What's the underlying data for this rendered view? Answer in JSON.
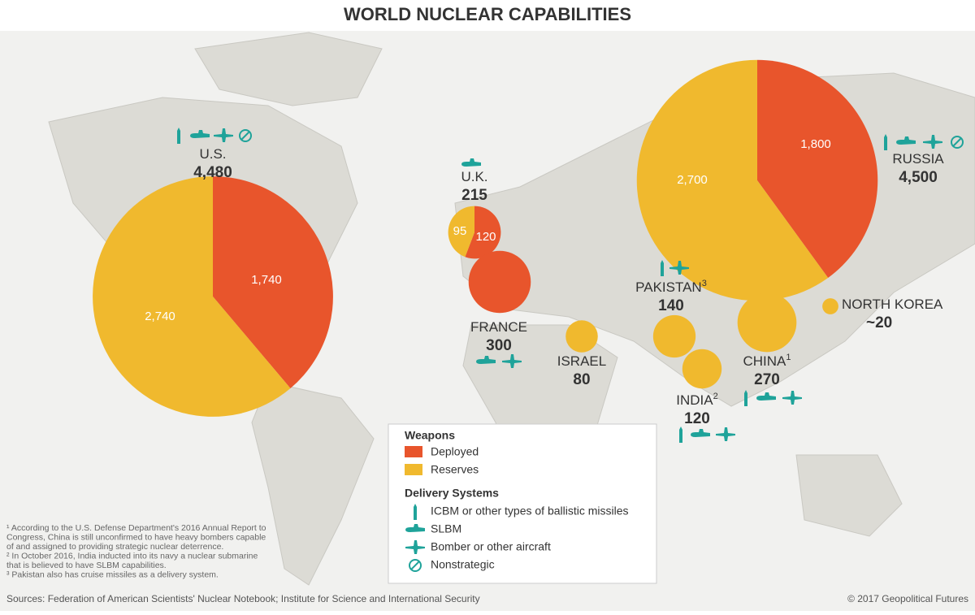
{
  "title": "WORLD NUCLEAR CAPABILITIES",
  "countries": [
    {
      "name": "U.S.",
      "total": {
        "value": 4480,
        "label": "4,480"
      },
      "deployed": {
        "value": 1740,
        "label": "1,740"
      },
      "reserves": {
        "value": 2740,
        "label": "2,740"
      }
    },
    {
      "name": "RUSSIA",
      "total": {
        "value": 4500,
        "label": "4,500"
      },
      "deployed": {
        "value": 1800,
        "label": "1,800"
      },
      "reserves": {
        "value": 2700,
        "label": "2,700"
      }
    },
    {
      "name": "U.K.",
      "total": 215,
      "deployed": 120,
      "reserves": 95
    },
    {
      "name": "FRANCE",
      "total": 300,
      "color": "#e8552c"
    },
    {
      "name": "ISRAEL",
      "total": 80,
      "color": "#f0b92e"
    },
    {
      "name": "PAKISTAN",
      "footnote": "3",
      "total": 140,
      "color": "#f0b92e"
    },
    {
      "name": "INDIA",
      "footnote": "2",
      "total": 120,
      "color": "#f0b92e"
    },
    {
      "name": "CHINA",
      "footnote": "1",
      "total": 270,
      "color": "#f0b92e"
    },
    {
      "name": "NORTH KOREA",
      "total": {
        "value": 20,
        "label": "~20"
      },
      "color": "#f0b92e"
    }
  ],
  "colors": {
    "deployed": "#e8552c",
    "reserves": "#f0b92e"
  },
  "legend": {
    "weapons_title": "Weapons",
    "weapons": [
      "Deployed",
      "Reserves"
    ],
    "delivery_title": "Delivery Systems",
    "delivery": [
      "ICBM or other types of ballistic missiles",
      "SLBM",
      "Bomber or other aircraft",
      "Nonstrategic"
    ]
  },
  "footnotes": [
    [
      "¹ According to the U.S. Defense Department's 2016 Annual Report to",
      "Congress, China is still unconfirmed to have heavy bombers capable",
      "of and assigned to providing strategic nuclear deterrence."
    ],
    [
      "² In October 2016, India inducted into its navy a nuclear submarine",
      "that is believed to have SLBM capabilities."
    ],
    [
      "³ Pakistan also has cruise missiles as a delivery system."
    ]
  ],
  "sources": "Sources: Federation of American Scientists' Nuclear Notebook; Institute for Science and International Security",
  "copyright": "© 2017 Geopolitical Futures"
}
